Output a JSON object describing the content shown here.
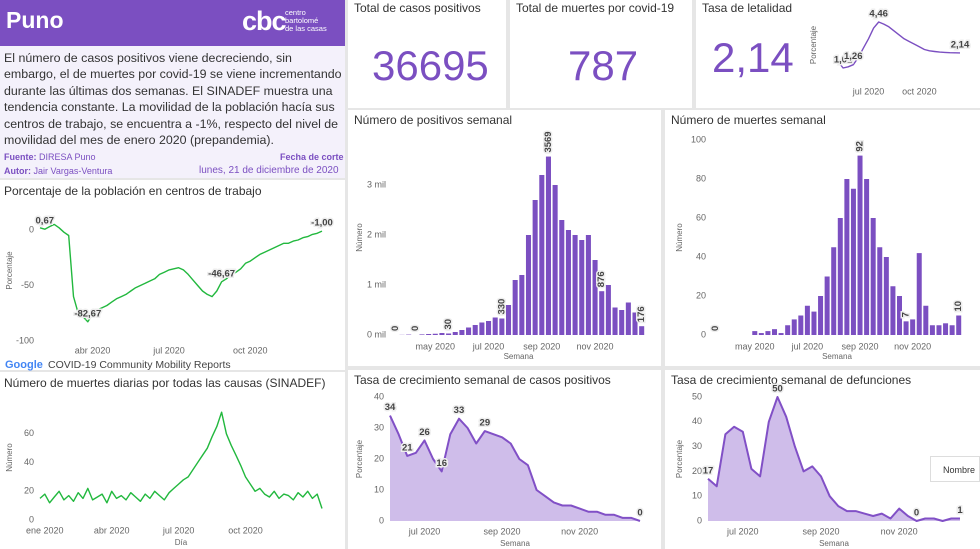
{
  "header": {
    "title": "Puno",
    "logo_mark": "cbc",
    "logo_lines": [
      "centro",
      "bartolomé",
      "de las casas"
    ]
  },
  "summary": "El número de casos positivos viene decreciendo, sin embargo, el de muertes por covid-19 se viene incrementando durante las últimas dos semanas. El SINADEF muestra una tendencia constante.  La movilidad de la población hacía sus centros de trabajo, se encuentra a -1%, respecto del nivel de movilidad del mes de enero 2020 (prepandemia).",
  "credits": {
    "source_label": "Fuente:",
    "source": "DIRESA Puno",
    "author_label": "Autor:",
    "author": "Jair Vargas-Ventura",
    "date_label": "Fecha de corte",
    "date": "lunes, 21 de diciembre de 2020"
  },
  "kpis": [
    {
      "title": "Total de casos positivos",
      "value": 36695
    },
    {
      "title": "Total de muertes por covid-19",
      "value": 787
    },
    {
      "title": "Tasa de letalidad",
      "value": "2,14"
    }
  ],
  "tooltip_fragment": "Nombre",
  "chart_data": [
    {
      "type": "line",
      "title": "Porcentaje de la población en centros de trabajo",
      "y_label": "Porcentaje",
      "source_logo": "Google",
      "source": "COVID-19 Community Mobility Reports",
      "color": "#22b83e",
      "ylim": [
        -100,
        27
      ],
      "yticks": [
        -100,
        -50,
        0
      ],
      "grid": false,
      "categories": [
        null,
        null,
        null,
        null,
        null,
        null,
        null,
        null,
        null,
        null,
        null,
        "abr 2020",
        null,
        null,
        null,
        null,
        null,
        null,
        null,
        null,
        null,
        null,
        null,
        null,
        null,
        null,
        null,
        "jul 2020",
        null,
        null,
        null,
        null,
        null,
        null,
        null,
        null,
        null,
        null,
        null,
        null,
        null,
        null,
        null,
        null,
        "oct 2020",
        null,
        null,
        null,
        null,
        null,
        null,
        null,
        null,
        null,
        null,
        null,
        null,
        null,
        null,
        null
      ],
      "values": [
        2,
        0.67,
        3,
        5,
        2,
        -2,
        -5,
        -60,
        -75,
        -78,
        -82.67,
        -76,
        -72,
        -70,
        -68,
        -65,
        -62,
        -60,
        -58,
        -55,
        -52,
        -50,
        -48,
        -46,
        -44,
        -40,
        -38,
        -36,
        -35,
        -34,
        -36,
        -40,
        -45,
        -50,
        -55,
        -58,
        -60,
        -55,
        -46.67,
        -44,
        -40,
        -38,
        -35,
        -30,
        -28,
        -25,
        -22,
        -20,
        -18,
        -16,
        -14,
        -12,
        -12,
        -10,
        -9,
        -7,
        -6,
        -4,
        -3,
        -1
      ],
      "value_labels": [
        null,
        "0,67",
        null,
        null,
        null,
        null,
        null,
        null,
        null,
        null,
        "-82,67",
        null,
        null,
        null,
        null,
        null,
        null,
        null,
        null,
        null,
        null,
        null,
        null,
        null,
        null,
        null,
        null,
        null,
        null,
        null,
        null,
        null,
        null,
        null,
        null,
        null,
        null,
        null,
        "-46,67",
        null,
        null,
        null,
        null,
        null,
        null,
        null,
        null,
        null,
        null,
        null,
        null,
        null,
        null,
        null,
        null,
        null,
        null,
        null,
        null,
        "-1,00"
      ]
    },
    {
      "type": "line",
      "title": "Número de muertes diarias por todas las causas (SINADEF)",
      "x_label": "Día",
      "y_label": "Número",
      "color": "#22b83e",
      "ylim": [
        0,
        87
      ],
      "yticks": [
        0,
        20,
        40,
        60
      ],
      "grid": false,
      "categories": [
        null,
        "ene 2020",
        null,
        null,
        null,
        null,
        null,
        null,
        null,
        null,
        null,
        null,
        null,
        null,
        null,
        "abr 2020",
        null,
        null,
        null,
        null,
        null,
        null,
        null,
        null,
        null,
        null,
        null,
        null,
        null,
        "jul 2020",
        null,
        null,
        null,
        null,
        null,
        null,
        null,
        null,
        null,
        null,
        null,
        null,
        null,
        "oct 2020",
        null,
        null,
        null,
        null,
        null,
        null,
        null,
        null,
        null,
        null,
        null,
        null,
        null,
        null,
        null,
        null
      ],
      "values": [
        15,
        18,
        12,
        16,
        20,
        14,
        17,
        13,
        19,
        15,
        22,
        14,
        16,
        18,
        12,
        20,
        15,
        17,
        14,
        19,
        16,
        13,
        18,
        15,
        20,
        17,
        14,
        19,
        22,
        25,
        28,
        30,
        35,
        40,
        45,
        50,
        58,
        65,
        75,
        60,
        52,
        45,
        38,
        30,
        25,
        20,
        22,
        18,
        16,
        20,
        15,
        18,
        17,
        14,
        19,
        16,
        20,
        15,
        18,
        8
      ]
    },
    {
      "type": "line",
      "y_label": "Porcentaje",
      "color": "#7b4fc1",
      "grid": false,
      "categories": [
        null,
        null,
        null,
        null,
        null,
        null,
        "jul 2020",
        null,
        null,
        null,
        null,
        null,
        null,
        null,
        null,
        null,
        "oct 2020",
        null,
        null,
        null,
        null,
        null,
        null,
        null,
        null
      ],
      "values": [
        1.5,
        1.01,
        1.1,
        1.26,
        1.8,
        2.5,
        3.2,
        4.0,
        4.46,
        4.3,
        4.1,
        3.8,
        3.5,
        3.2,
        3.0,
        2.8,
        2.6,
        2.4,
        2.3,
        2.25,
        2.2,
        2.18,
        2.16,
        2.15,
        2.14
      ],
      "value_labels": [
        null,
        "1,01",
        null,
        "1,26",
        null,
        null,
        null,
        null,
        "4,46",
        null,
        null,
        null,
        null,
        null,
        null,
        null,
        null,
        null,
        null,
        null,
        null,
        null,
        null,
        null,
        "2,14"
      ]
    },
    {
      "type": "bar",
      "title": "Número de positivos semanal",
      "x_label": "Semana",
      "y_label": "Número",
      "color": "#7b4fc1",
      "ylim": [
        0,
        3900
      ],
      "grid": false,
      "yticks": [
        {
          "value": 0,
          "label": "0 mil"
        },
        {
          "value": 1000,
          "label": "1 mil"
        },
        {
          "value": 2000,
          "label": "2 mil"
        },
        {
          "value": 3000,
          "label": "3 mil"
        }
      ],
      "categories": [
        null,
        null,
        null,
        null,
        null,
        null,
        "may 2020",
        null,
        null,
        null,
        null,
        null,
        null,
        null,
        "jul 2020",
        null,
        null,
        null,
        null,
        null,
        null,
        null,
        "sep 2020",
        null,
        null,
        null,
        null,
        null,
        null,
        null,
        "nov 2020",
        null,
        null,
        null,
        null,
        null,
        null,
        null
      ],
      "values": [
        0,
        3,
        8,
        0,
        12,
        20,
        25,
        40,
        30,
        60,
        100,
        150,
        200,
        250,
        280,
        350,
        330,
        600,
        1100,
        1200,
        2000,
        2700,
        3200,
        3569,
        3000,
        2300,
        2100,
        2000,
        1900,
        2000,
        1500,
        876,
        1000,
        550,
        500,
        650,
        450,
        176
      ],
      "value_labels": [
        "0",
        null,
        null,
        "0",
        null,
        null,
        null,
        null,
        "30",
        null,
        null,
        null,
        null,
        null,
        null,
        null,
        "330",
        null,
        null,
        null,
        null,
        null,
        null,
        "3569",
        null,
        null,
        null,
        null,
        null,
        null,
        null,
        "876",
        null,
        null,
        null,
        null,
        null,
        "176"
      ]
    },
    {
      "type": "bar",
      "title": "Número de muertes semanal",
      "x_label": "Semana",
      "y_label": "Número",
      "color": "#7b4fc1",
      "ylim": [
        0,
        100
      ],
      "yticks": [
        0,
        20,
        40,
        60,
        80,
        100
      ],
      "grid": false,
      "categories": [
        null,
        null,
        null,
        null,
        null,
        null,
        "may 2020",
        null,
        null,
        null,
        null,
        null,
        null,
        null,
        "jul 2020",
        null,
        null,
        null,
        null,
        null,
        null,
        null,
        "sep 2020",
        null,
        null,
        null,
        null,
        null,
        null,
        null,
        "nov 2020",
        null,
        null,
        null,
        null,
        null,
        null,
        null
      ],
      "values": [
        0,
        0,
        0,
        0,
        0,
        0,
        2,
        1,
        2,
        3,
        1,
        5,
        8,
        10,
        15,
        12,
        20,
        30,
        45,
        60,
        80,
        75,
        92,
        80,
        60,
        45,
        40,
        25,
        20,
        7,
        8,
        42,
        15,
        5,
        5,
        6,
        5,
        10
      ],
      "value_labels": [
        "0",
        null,
        null,
        null,
        null,
        null,
        null,
        null,
        null,
        null,
        null,
        null,
        null,
        null,
        null,
        null,
        null,
        null,
        null,
        null,
        null,
        null,
        "92",
        null,
        null,
        null,
        null,
        null,
        null,
        "7",
        null,
        null,
        null,
        null,
        null,
        null,
        null,
        "10"
      ]
    },
    {
      "type": "area",
      "title": "Tasa de crecimiento semanal de casos positivos",
      "x_label": "Semana",
      "y_label": "Porcentaje",
      "color": "#8150c6",
      "fill": "#cfbdea",
      "ylim": [
        0,
        40
      ],
      "yticks": [
        0,
        10,
        20,
        30,
        40
      ],
      "grid": false,
      "categories": [
        null,
        null,
        null,
        null,
        "jul 2020",
        null,
        null,
        null,
        null,
        null,
        null,
        null,
        null,
        "sep 2020",
        null,
        null,
        null,
        null,
        null,
        null,
        null,
        null,
        "nov 2020",
        null,
        null,
        null,
        null,
        null,
        null,
        null
      ],
      "values": [
        34,
        28,
        21,
        22,
        26,
        20,
        16,
        28,
        33,
        30,
        25,
        29,
        28,
        27,
        25,
        20,
        18,
        10,
        8,
        6,
        5,
        5,
        4,
        3,
        3,
        2,
        2,
        1,
        1,
        0
      ],
      "value_labels": [
        "34",
        null,
        "21",
        null,
        "26",
        null,
        "16",
        null,
        "33",
        null,
        null,
        "29",
        null,
        null,
        null,
        null,
        null,
        null,
        null,
        null,
        null,
        null,
        null,
        null,
        null,
        null,
        null,
        null,
        null,
        "0"
      ]
    },
    {
      "type": "area",
      "title": "Tasa de crecimiento semanal de defunciones",
      "x_label": "Semana",
      "y_label": "Porcentaje",
      "color": "#8150c6",
      "fill": "#cfbdea",
      "ylim": [
        0,
        50
      ],
      "yticks": [
        0,
        10,
        20,
        30,
        40,
        50
      ],
      "grid": false,
      "categories": [
        null,
        null,
        null,
        null,
        "jul 2020",
        null,
        null,
        null,
        null,
        null,
        null,
        null,
        null,
        "sep 2020",
        null,
        null,
        null,
        null,
        null,
        null,
        null,
        null,
        "nov 2020",
        null,
        null,
        null,
        null,
        null,
        null,
        null
      ],
      "values": [
        17,
        14,
        35,
        38,
        36,
        21,
        18,
        40,
        50,
        42,
        30,
        20,
        22,
        18,
        10,
        6,
        4,
        4,
        3,
        2,
        3,
        1,
        5,
        2,
        0,
        1,
        1,
        0,
        1,
        1
      ],
      "value_labels": [
        "17",
        null,
        null,
        null,
        null,
        null,
        null,
        null,
        "50",
        null,
        null,
        null,
        null,
        null,
        null,
        null,
        null,
        null,
        null,
        null,
        null,
        null,
        null,
        null,
        "0",
        null,
        null,
        null,
        null,
        "1"
      ]
    }
  ]
}
